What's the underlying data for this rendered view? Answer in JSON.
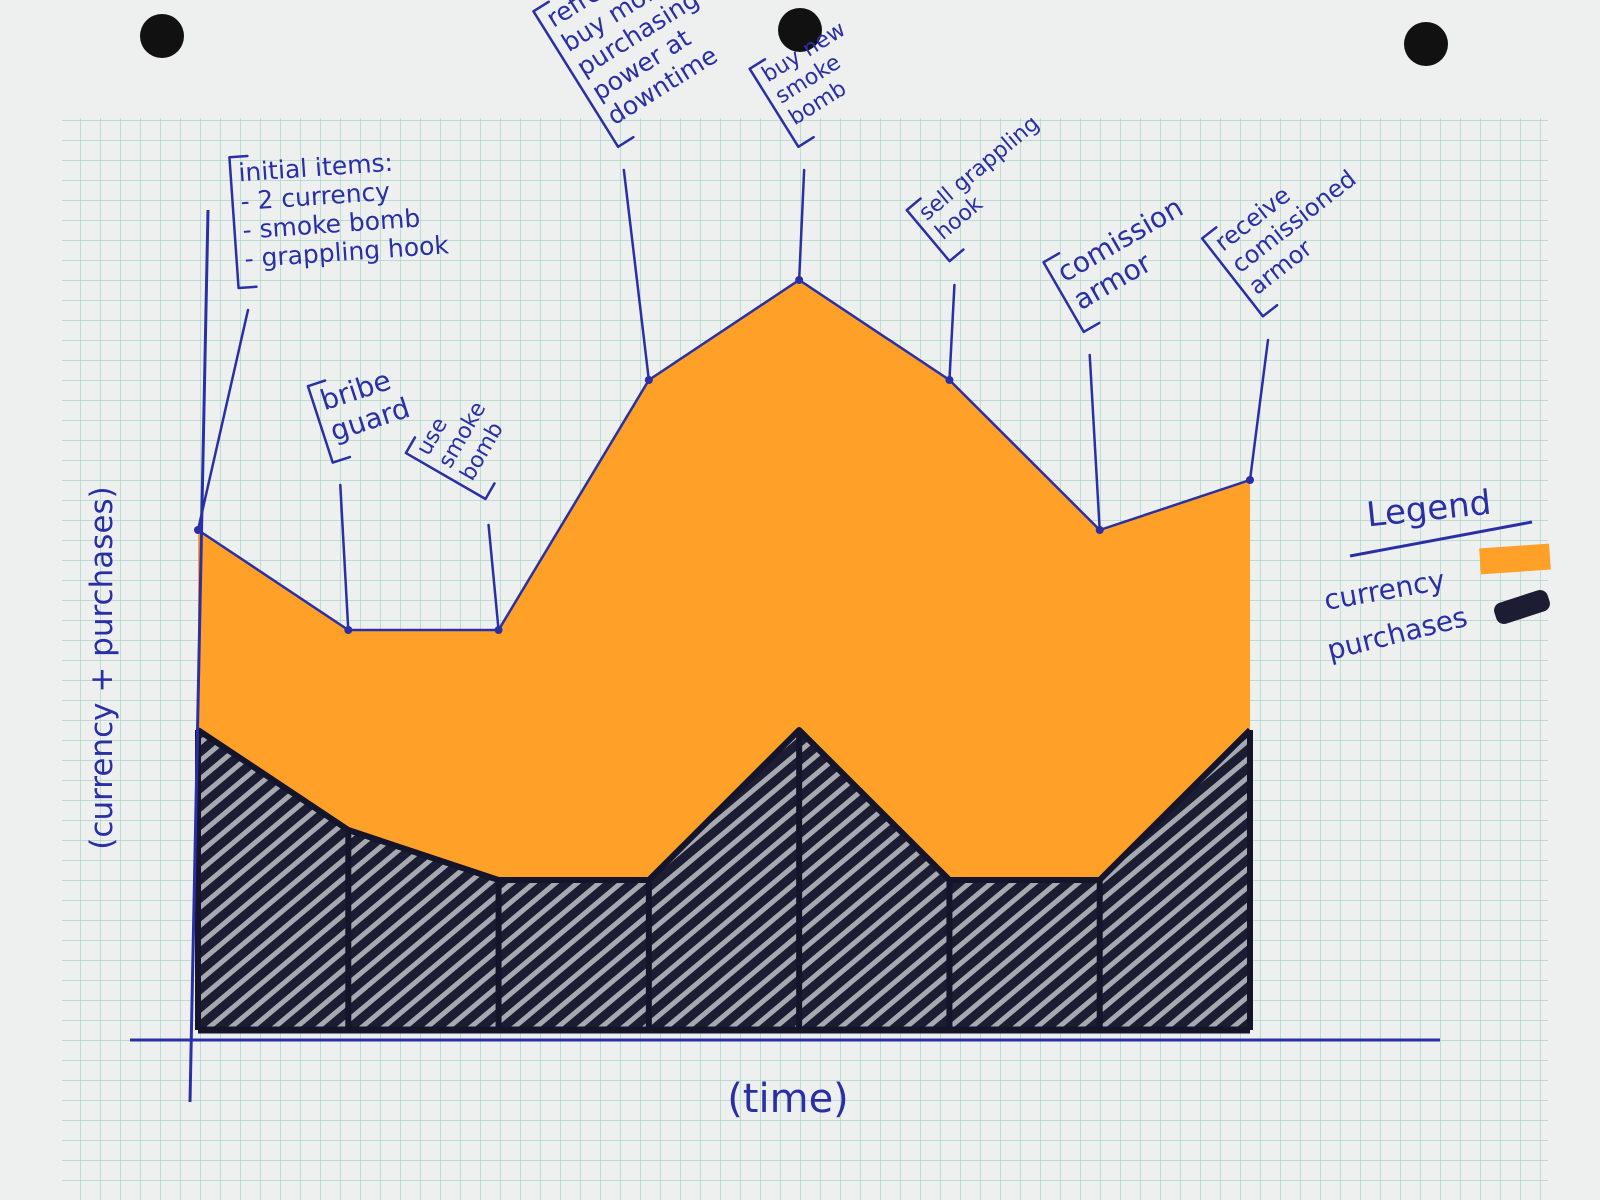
{
  "colors": {
    "paper": "#eef0f0",
    "grid": "#9fd0bd",
    "ink": "#2a2fa6",
    "currency": "#ffa028",
    "purchases": "#1c1d33"
  },
  "chart_data": {
    "type": "area",
    "xlabel": "(time)",
    "ylabel": "(currency + purchases)",
    "ylim": [
      0,
      10
    ],
    "x": [
      0,
      1,
      2,
      3,
      4,
      5,
      6,
      7
    ],
    "series": [
      {
        "name": "currency",
        "values": [
          2,
          2,
          2.5,
          5,
          4.5,
          5,
          3.5,
          2.5
        ]
      },
      {
        "name": "purchases",
        "values": [
          3,
          2,
          1.5,
          1.5,
          3,
          1.5,
          1.5,
          3
        ]
      }
    ],
    "annotations": [
      {
        "x": 0,
        "lines": [
          "initial items:",
          "- 2 currency",
          "- smoke bomb",
          "- grappling hook"
        ]
      },
      {
        "x": 1,
        "lines": [
          "bribe",
          "guard"
        ]
      },
      {
        "x": 2,
        "lines": [
          "use",
          "smoke",
          "bomb"
        ]
      },
      {
        "x": 3,
        "lines": [
          "refresh and",
          "buy more",
          "purchasing",
          "power at",
          "downtime"
        ]
      },
      {
        "x": 4,
        "lines": [
          "buy new",
          "smoke",
          "bomb"
        ]
      },
      {
        "x": 5,
        "lines": [
          "sell grappling",
          "hook"
        ]
      },
      {
        "x": 6,
        "lines": [
          "comission",
          "armor"
        ]
      },
      {
        "x": 7,
        "lines": [
          "receive",
          "comissioned",
          "armor"
        ]
      }
    ],
    "legend": {
      "title": "Legend",
      "position": "right",
      "items": [
        {
          "label": "currency",
          "color": "#ffa028"
        },
        {
          "label": "purchases",
          "color": "#1c1d33"
        }
      ]
    }
  }
}
